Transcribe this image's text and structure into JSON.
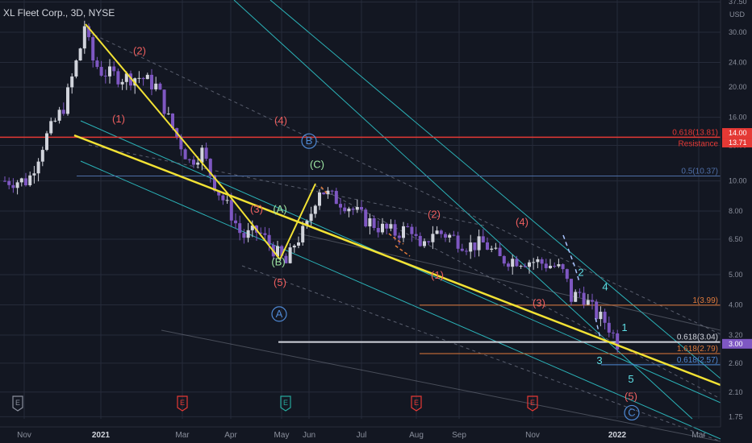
{
  "chart": {
    "title": "XL Fleet Corp., 3D, NYSE",
    "currency": "USD"
  },
  "colors": {
    "background": "#131722",
    "grid": "#262b3a",
    "up_candle": "#d1d4dc",
    "down_candle": "#7e57c2",
    "trendline": "#f2e234",
    "channel": "#2bb3b8",
    "resistance": "#e53935",
    "fib": "#e07a3b",
    "wave_red": "#ef5f5f",
    "wave_green": "#9ee6a3",
    "wave_blue": "#4f8ad6",
    "wave_cyan": "#5fe0e6",
    "axis_text": "#8a8f9c"
  },
  "chart_data": {
    "type": "candlestick",
    "title": "XL Fleet Corp., 3D, NYSE",
    "y_scale": "log",
    "ylim": [
      1.62,
      37.5
    ],
    "y_ticks": [
      "37.50",
      "30.00",
      "24.00",
      "20.00",
      "16.00",
      "13.00",
      "10.00",
      "8.00",
      "6.50",
      "5.00",
      "4.00",
      "3.20",
      "2.60",
      "2.10",
      "1.75"
    ],
    "x_ticks": [
      "Nov",
      "2021",
      "Mar",
      "Apr",
      "May",
      "Jun",
      "Jul",
      "Aug",
      "Sep",
      "Nov",
      "2022",
      "Mar"
    ],
    "price_badges": [
      {
        "value": "14.00",
        "color": "#e53935"
      },
      {
        "value": "13.71",
        "color": "#e53935"
      },
      {
        "value": "3.00",
        "color": "#7e57c2"
      }
    ],
    "levels": [
      {
        "label": "0.618(13.81)",
        "price": 13.81,
        "color": "#e53935"
      },
      {
        "label": "Resistance",
        "price": 13.71,
        "color": "#e53935"
      },
      {
        "label": "0.5(10.37)",
        "price": 10.37,
        "color": "#4f6fa8"
      },
      {
        "label": "1(3.99)",
        "price": 3.99,
        "color": "#e07a3b"
      },
      {
        "label": "0.618(3.04)",
        "price": 3.04,
        "color": "#d1d4dc"
      },
      {
        "label": "1.618(2.79)",
        "price": 2.79,
        "color": "#e07a3b"
      },
      {
        "label": "0.618(2.57)",
        "price": 2.57,
        "color": "#4f8ad6"
      }
    ],
    "wave_labels": [
      {
        "text": "(2)",
        "x": "Jan 2021",
        "price": 25.5,
        "color": "#ef5f5f"
      },
      {
        "text": "(1)",
        "x": "Jan 2021",
        "price": 15.4,
        "color": "#ef5f5f"
      },
      {
        "text": "(4)",
        "x": "Mar 2021",
        "price": 15.2,
        "color": "#ef5f5f"
      },
      {
        "text": "(3)",
        "x": "Mar 2021",
        "price": 7.9,
        "color": "#ef5f5f"
      },
      {
        "text": "(A)",
        "x": "May 2021",
        "price": 7.9,
        "color": "#9ee6a3"
      },
      {
        "text": "(B)",
        "x": "May 2021",
        "price": 5.35,
        "color": "#9ee6a3"
      },
      {
        "text": "(5)",
        "x": "May 2021",
        "price": 4.6,
        "color": "#ef5f5f"
      },
      {
        "text": "A",
        "x": "May 2021",
        "price": 3.65,
        "color": "#4f8ad6"
      },
      {
        "text": "B",
        "x": "Jun 2021",
        "price": 13.1,
        "color": "#4f8ad6"
      },
      {
        "text": "(C)",
        "x": "Jun 2021",
        "price": 11.0,
        "color": "#9ee6a3"
      },
      {
        "text": "(2)",
        "x": "Aug 2021",
        "price": 7.6,
        "color": "#ef5f5f"
      },
      {
        "text": "(1)",
        "x": "Aug 2021",
        "price": 4.85,
        "color": "#ef5f5f"
      },
      {
        "text": "(4)",
        "x": "Nov 2021",
        "price": 7.2,
        "color": "#ef5f5f"
      },
      {
        "text": "(3)",
        "x": "Nov 2021",
        "price": 3.95,
        "color": "#ef5f5f"
      },
      {
        "text": "2",
        "x": "Nov 2021",
        "price": 4.95,
        "color": "#5fe0e6"
      },
      {
        "text": "4",
        "x": "Dec 2021",
        "price": 4.45,
        "color": "#5fe0e6"
      },
      {
        "text": "1",
        "x": "Dec 2021",
        "price": 3.3,
        "color": "#5fe0e6"
      },
      {
        "text": "3",
        "x": "Dec 2021",
        "price": 2.58,
        "color": "#5fe0e6"
      },
      {
        "text": "5",
        "x": "Jan 2022",
        "price": 2.25,
        "color": "#5fe0e6"
      },
      {
        "text": "(5)",
        "x": "Jan 2022",
        "price": 1.98,
        "color": "#ef5f5f"
      },
      {
        "text": "C",
        "x": "Jan 2022",
        "price": 1.76,
        "color": "#4f8ad6"
      }
    ],
    "earnings_markers": [
      {
        "x": "Nov 2020",
        "label": "E",
        "color": "#8a8f9c"
      },
      {
        "x": "Mar 2021",
        "label": "E",
        "color": "#e53935"
      },
      {
        "x": "May 2021",
        "label": "E",
        "color": "#26a69a"
      },
      {
        "x": "Aug 2021",
        "label": "E",
        "color": "#e53935"
      },
      {
        "x": "Nov 2021",
        "label": "E",
        "color": "#e53935"
      }
    ]
  }
}
